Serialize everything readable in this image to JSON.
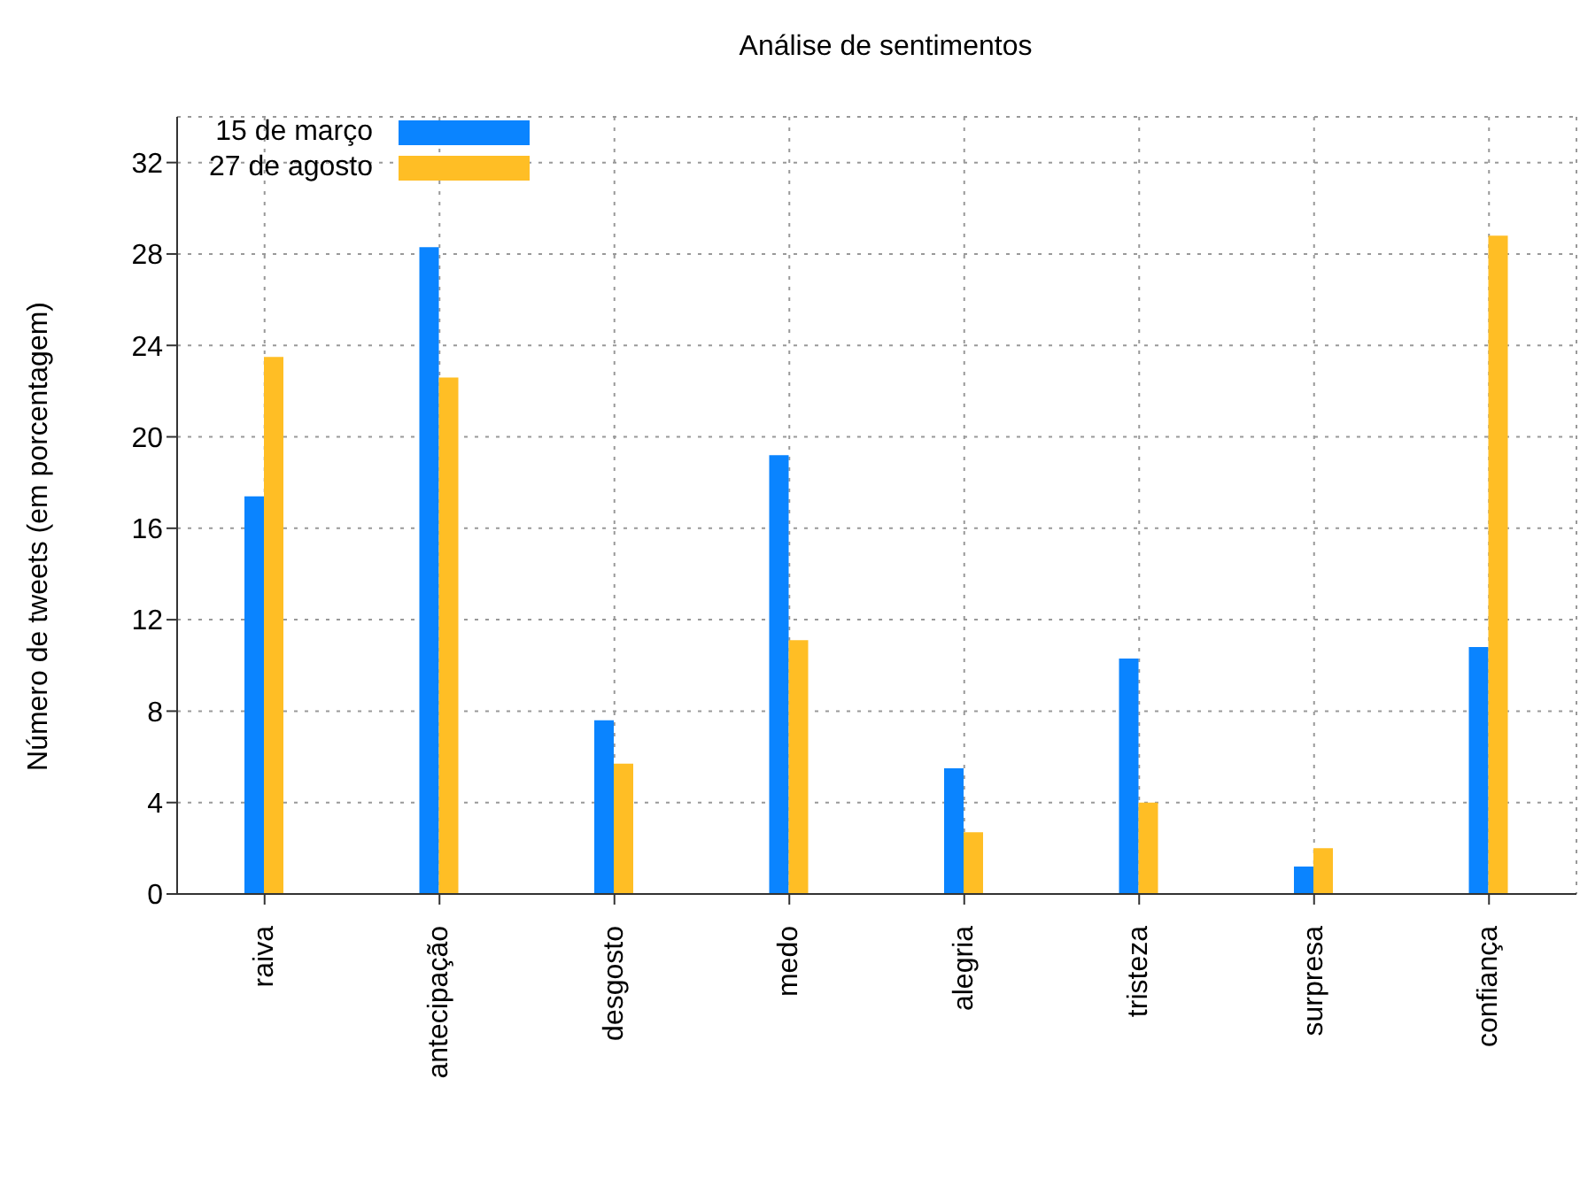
{
  "chart_data": {
    "type": "bar",
    "title": "Análise de sentimentos",
    "ylabel": "Número de tweets (em porcentagem)",
    "categories": [
      "raiva",
      "antecipação",
      "desgosto",
      "medo",
      "alegria",
      "tristeza",
      "surpresa",
      "confiança"
    ],
    "series": [
      {
        "name": "15 de março",
        "color": "#0a84ff",
        "values": [
          17.4,
          28.3,
          7.6,
          19.2,
          5.5,
          10.3,
          1.2,
          10.8
        ]
      },
      {
        "name": "27 de agosto",
        "color": "#ffbe25",
        "values": [
          23.5,
          22.6,
          5.7,
          11.1,
          2.7,
          4.0,
          2.0,
          28.8
        ]
      }
    ],
    "ylim": [
      0,
      34
    ],
    "yticks": [
      0,
      4,
      8,
      12,
      16,
      20,
      24,
      28,
      32
    ],
    "grid": true,
    "legend": "top left"
  }
}
